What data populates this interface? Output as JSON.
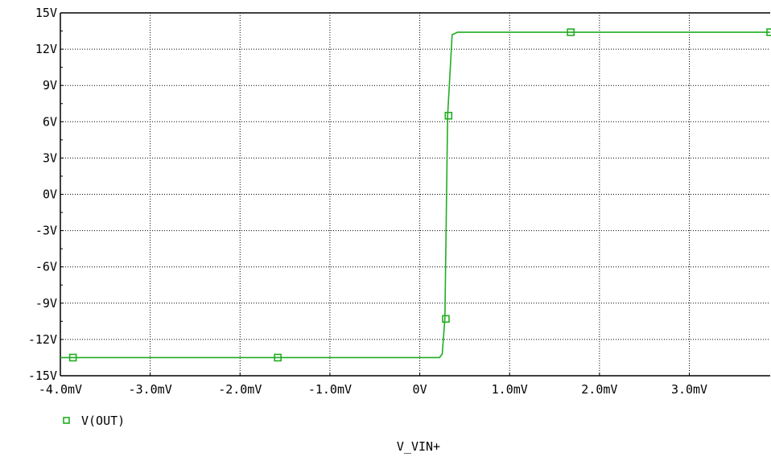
{
  "chart_data": {
    "type": "line",
    "title": "",
    "xlabel": "V_VIN+",
    "ylabel": "",
    "xlim": [
      -4.0,
      3.9
    ],
    "ylim": [
      -15,
      15
    ],
    "grid": true,
    "legend": "bottom-left",
    "x_ticks": [
      -4.0,
      -3.0,
      -2.0,
      -1.0,
      0,
      1.0,
      2.0,
      3.0
    ],
    "x_tick_labels": [
      "-4.0mV",
      "-3.0mV",
      "-2.0mV",
      "-1.0mV",
      "0V",
      "1.0mV",
      "2.0mV",
      "3.0mV"
    ],
    "y_ticks": [
      15,
      12,
      9,
      6,
      3,
      0,
      -3,
      -6,
      -9,
      -12,
      -15
    ],
    "y_tick_labels": [
      "15V",
      "12V",
      "9V",
      "6V",
      "3V",
      "0V",
      "-3V",
      "-6V",
      "-9V",
      "-12V",
      "-15V"
    ],
    "series": [
      {
        "name": "V(OUT)",
        "color": "#21ad21",
        "marker": "square",
        "x": [
          -4.0,
          0.22,
          0.25,
          0.28,
          0.31,
          0.36,
          0.42,
          3.9
        ],
        "y": [
          -13.5,
          -13.5,
          -13.2,
          -10.3,
          6.5,
          13.2,
          13.4,
          13.4
        ],
        "marker_points": [
          {
            "x": -3.86,
            "y": -13.5
          },
          {
            "x": -1.58,
            "y": -13.5
          },
          {
            "x": 0.29,
            "y": -10.3
          },
          {
            "x": 0.32,
            "y": 6.5
          },
          {
            "x": 1.68,
            "y": 13.4
          },
          {
            "x": 3.9,
            "y": 13.4
          }
        ]
      }
    ]
  }
}
